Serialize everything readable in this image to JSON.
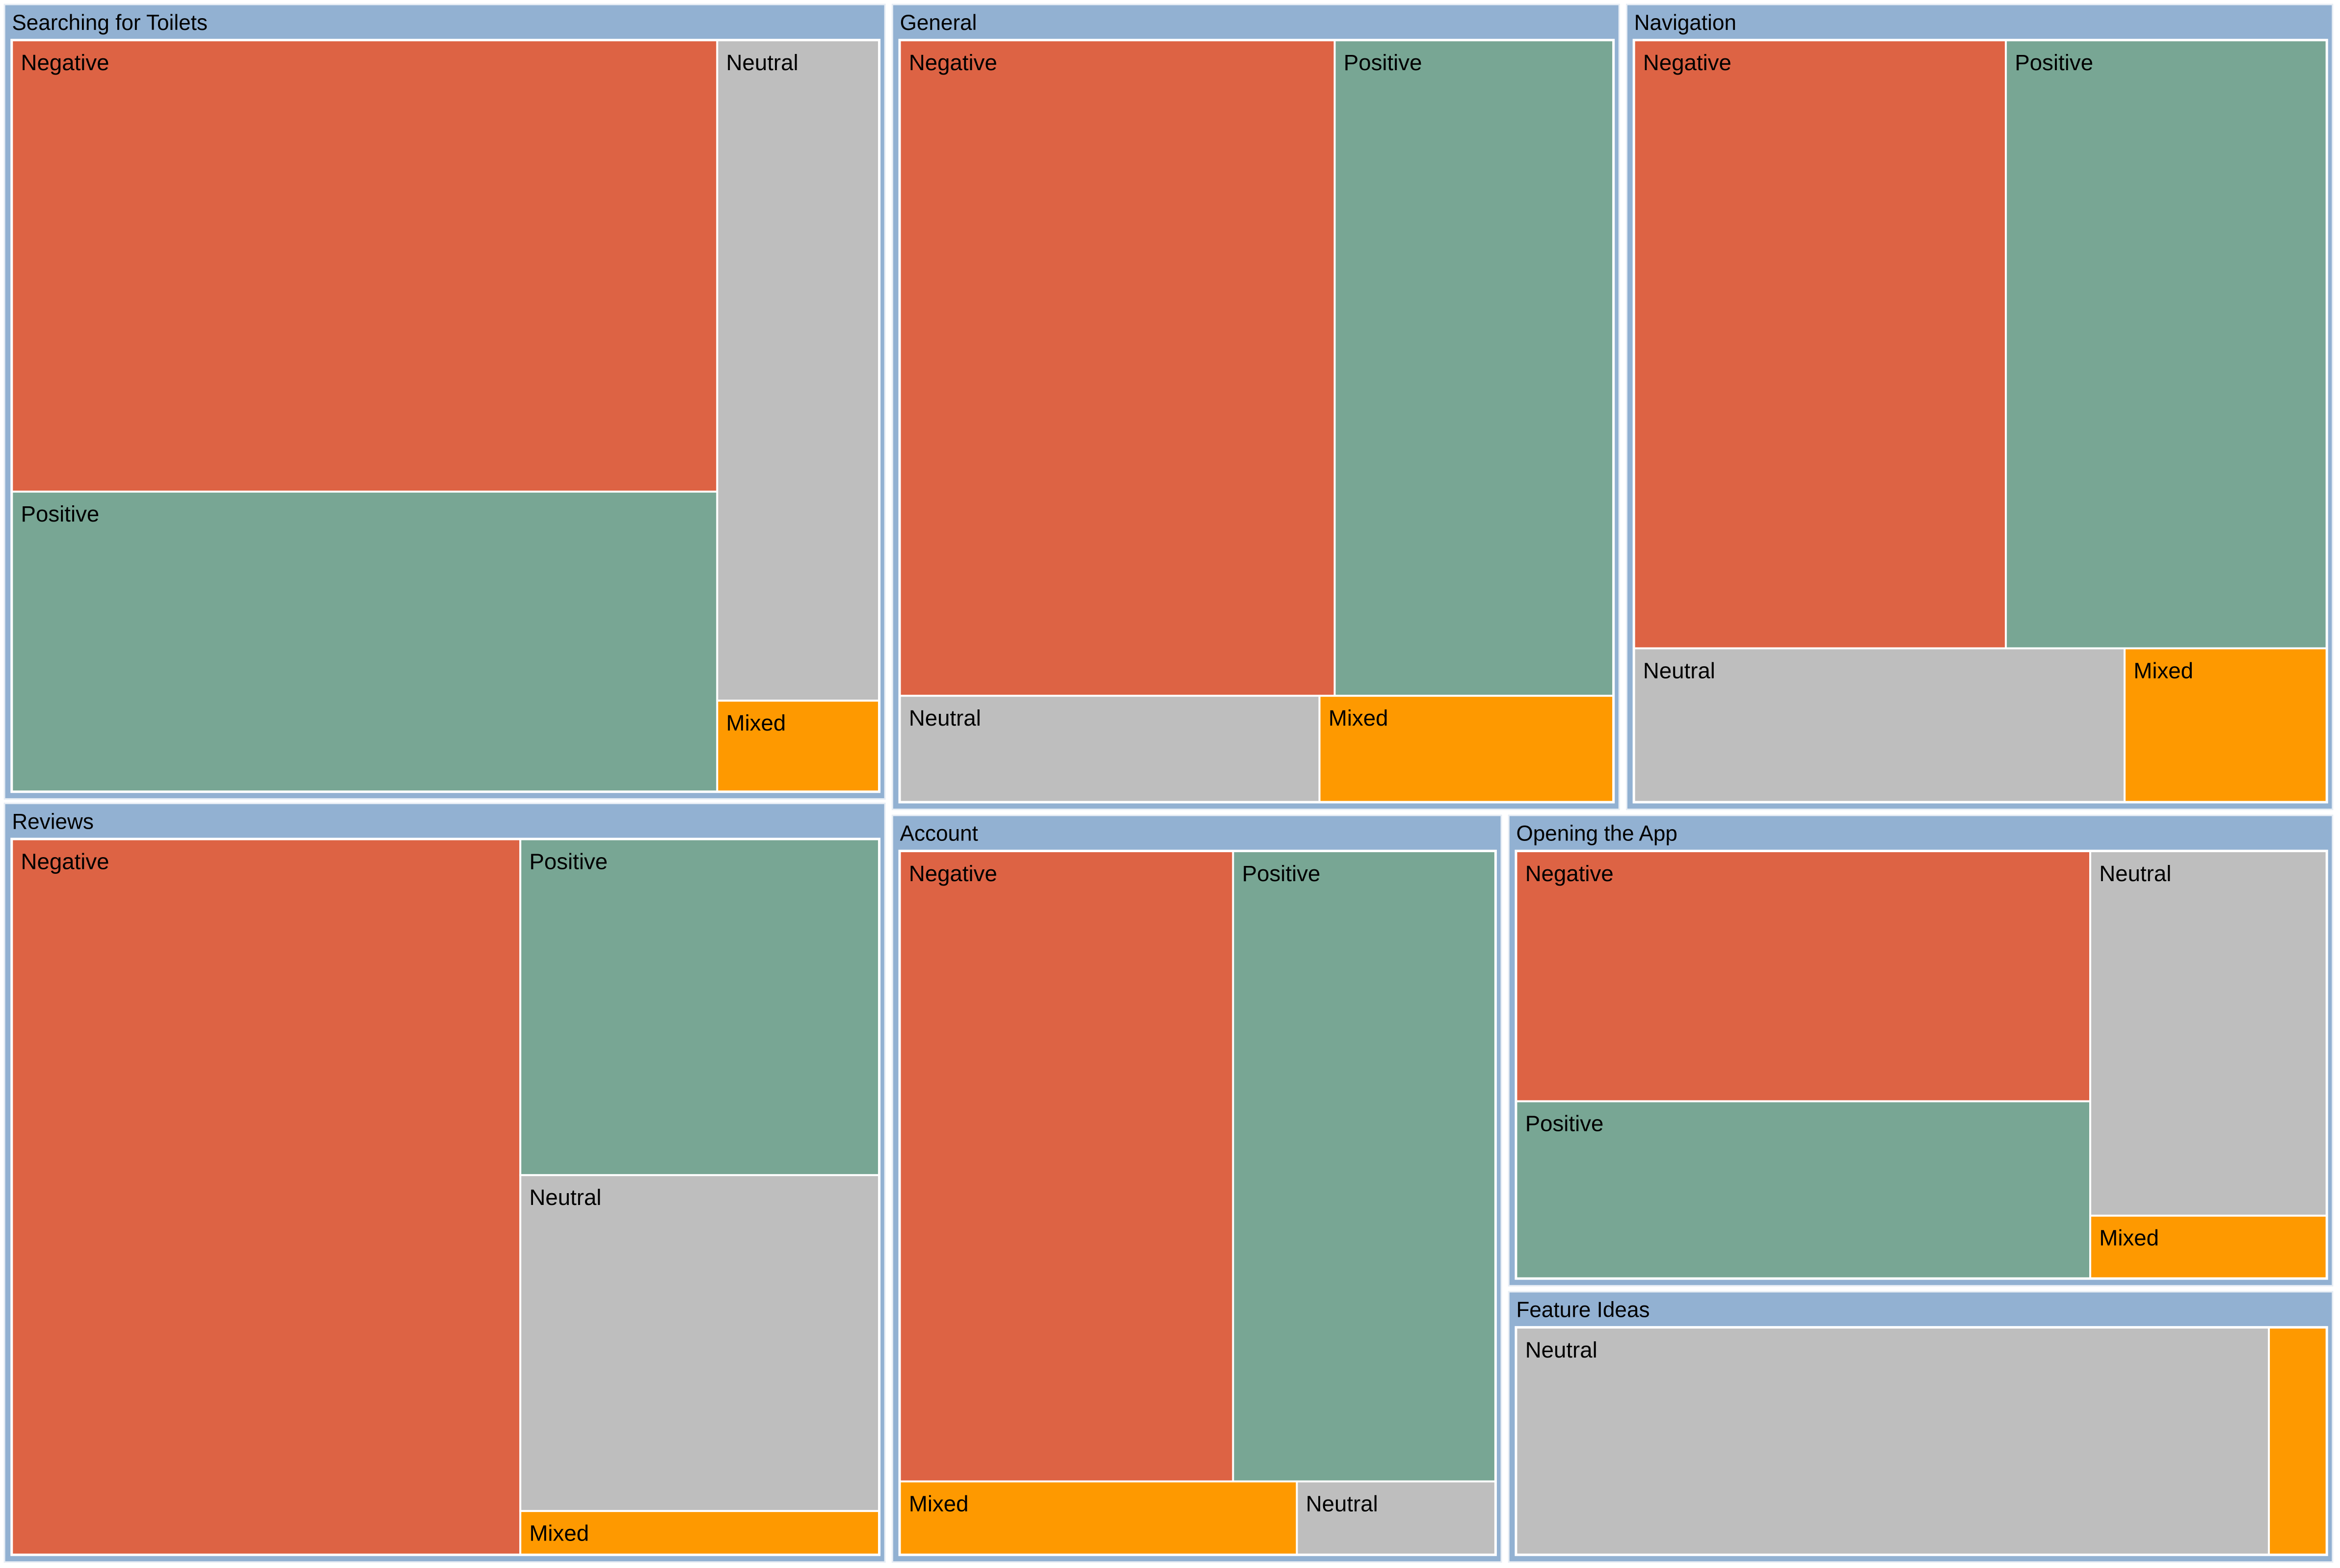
{
  "chart_data": {
    "type": "treemap",
    "title": "",
    "colors": {
      "header": "#92b1d2",
      "Negative": "#dd6344",
      "Positive": "#78a694",
      "Neutral": "#bebebe",
      "Mixed": "#fe9900"
    },
    "groups": [
      {
        "name": "Searching for Toilets",
        "cells": [
          {
            "label": "Negative",
            "key": "Negative",
            "value": 143
          },
          {
            "label": "Positive",
            "key": "Positive",
            "value": 95
          },
          {
            "label": "Neutral",
            "key": "Neutral",
            "value": 48
          },
          {
            "label": "Mixed",
            "key": "Mixed",
            "value": 6.6
          }
        ]
      },
      {
        "name": "General",
        "cells": [
          {
            "label": "Negative",
            "key": "Negative",
            "value": 128
          },
          {
            "label": "Positive",
            "key": "Positive",
            "value": 82
          },
          {
            "label": "Neutral",
            "key": "Neutral",
            "value": 20
          },
          {
            "label": "Mixed",
            "key": "Mixed",
            "value": 14
          }
        ]
      },
      {
        "name": "Navigation",
        "cells": [
          {
            "label": "Negative",
            "key": "Negative",
            "value": 102
          },
          {
            "label": "Positive",
            "key": "Positive",
            "value": 88
          },
          {
            "label": "Neutral",
            "key": "Neutral",
            "value": 34
          },
          {
            "label": "Mixed",
            "key": "Mixed",
            "value": 14
          }
        ]
      },
      {
        "name": "Reviews",
        "cells": [
          {
            "label": "Negative",
            "key": "Negative",
            "value": 163
          },
          {
            "label": "Positive",
            "key": "Positive",
            "value": 54
          },
          {
            "label": "Neutral",
            "key": "Neutral",
            "value": 54
          },
          {
            "label": "Mixed",
            "key": "Mixed",
            "value": 7
          }
        ]
      },
      {
        "name": "Account",
        "cells": [
          {
            "label": "Negative",
            "key": "Negative",
            "value": 94
          },
          {
            "label": "Positive",
            "key": "Positive",
            "value": 74
          },
          {
            "label": "Mixed",
            "key": "Mixed",
            "value": 13
          },
          {
            "label": "Neutral",
            "key": "Neutral",
            "value": 6.5
          }
        ]
      },
      {
        "name": "Opening the App",
        "cells": [
          {
            "label": "Negative",
            "key": "Negative",
            "value": 65
          },
          {
            "label": "Positive",
            "key": "Positive",
            "value": 46
          },
          {
            "label": "Neutral",
            "key": "Neutral",
            "value": 39
          },
          {
            "label": "Mixed",
            "key": "Mixed",
            "value": 6.7
          }
        ]
      },
      {
        "name": "Feature Ideas",
        "cells": [
          {
            "label": "Neutral",
            "key": "Neutral",
            "value": 77
          },
          {
            "label": "",
            "key": "Mixed",
            "value": 5.9
          }
        ]
      }
    ]
  }
}
